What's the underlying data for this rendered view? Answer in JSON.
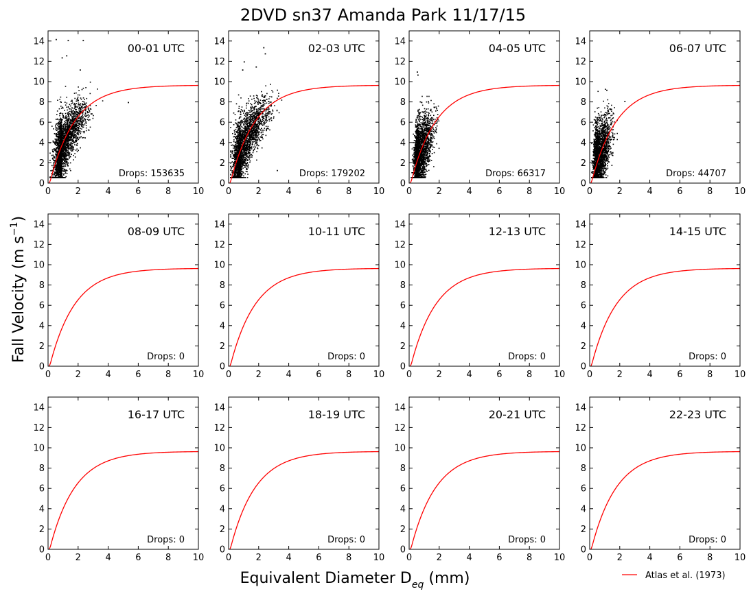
{
  "figure": {
    "title": "2DVD sn37 Amanda Park 11/17/15",
    "ylabel_main": "Fall Velocity (m s",
    "ylabel_sup": "−1",
    "ylabel_tail": ")",
    "xlabel_main": "Equivalent Diameter D",
    "xlabel_sub": "eq",
    "xlabel_tail": " (mm)",
    "legend_label": "Atlas et al. (1973)",
    "legend_position": "below-right",
    "fit_color": "#ff0000",
    "drop_color": "#000000"
  },
  "chart_data": [
    {
      "type": "scatter",
      "label": "00-01 UTC",
      "drops_text": "Drops: 153635",
      "xlim": [
        0,
        10
      ],
      "ylim": [
        0,
        15
      ],
      "x_ticks": [
        "0",
        "2",
        "4",
        "6",
        "8",
        "10"
      ],
      "y_ticks": [
        "0",
        "2",
        "4",
        "6",
        "8",
        "10",
        "12",
        "14"
      ],
      "has_scatter": true,
      "d_peak": 0.9,
      "d_spread": 0.75,
      "d_max": 3.6,
      "v_lo": 0.6,
      "v_hi": 10.0,
      "outliers": [
        [
          0.5,
          14.2
        ],
        [
          1.3,
          14.1
        ],
        [
          2.3,
          14.1
        ],
        [
          0.9,
          12.4
        ],
        [
          1.2,
          12.6
        ],
        [
          2.1,
          11.2
        ],
        [
          5.3,
          8.0
        ]
      ]
    },
    {
      "type": "scatter",
      "label": "02-03 UTC",
      "drops_text": "Drops: 179202",
      "xlim": [
        0,
        10
      ],
      "ylim": [
        0,
        15
      ],
      "x_ticks": [
        "0",
        "2",
        "4",
        "6",
        "8",
        "10"
      ],
      "y_ticks": [
        "0",
        "2",
        "4",
        "6",
        "8",
        "10",
        "12",
        "14"
      ],
      "has_scatter": true,
      "d_peak": 0.8,
      "d_spread": 0.85,
      "d_max": 3.5,
      "v_lo": 0.6,
      "v_hi": 10.2,
      "outliers": [
        [
          2.3,
          13.4
        ],
        [
          1.0,
          12.0
        ],
        [
          1.8,
          11.5
        ],
        [
          0.9,
          11.2
        ],
        [
          3.2,
          1.3
        ],
        [
          2.4,
          12.8
        ]
      ]
    },
    {
      "type": "scatter",
      "label": "04-05 UTC",
      "drops_text": "Drops: 66317",
      "xlim": [
        0,
        10
      ],
      "ylim": [
        0,
        15
      ],
      "x_ticks": [
        "0",
        "2",
        "4",
        "6",
        "8",
        "10"
      ],
      "y_ticks": [
        "0",
        "2",
        "4",
        "6",
        "8",
        "10",
        "12",
        "14"
      ],
      "has_scatter": true,
      "d_peak": 0.6,
      "d_spread": 0.45,
      "d_max": 2.1,
      "v_lo": 0.6,
      "v_hi": 8.6,
      "outliers": [
        [
          0.5,
          11.0
        ],
        [
          0.55,
          10.7
        ],
        [
          0.8,
          8.0
        ]
      ]
    },
    {
      "type": "scatter",
      "label": "06-07 UTC",
      "drops_text": "Drops: 44707",
      "xlim": [
        0,
        10
      ],
      "ylim": [
        0,
        15
      ],
      "x_ticks": [
        "0",
        "2",
        "4",
        "6",
        "8",
        "10"
      ],
      "y_ticks": [
        "0",
        "2",
        "4",
        "6",
        "8",
        "10",
        "12",
        "14"
      ],
      "has_scatter": true,
      "d_peak": 0.5,
      "d_spread": 0.4,
      "d_max": 1.8,
      "v_lo": 0.6,
      "v_hi": 9.3,
      "outliers": [
        [
          2.3,
          8.1
        ],
        [
          1.1,
          9.2
        ]
      ]
    },
    {
      "type": "scatter",
      "label": "08-09 UTC",
      "drops_text": "Drops: 0",
      "xlim": [
        0,
        10
      ],
      "ylim": [
        0,
        15
      ],
      "x_ticks": [
        "0",
        "2",
        "4",
        "6",
        "8",
        "10"
      ],
      "y_ticks": [
        "0",
        "2",
        "4",
        "6",
        "8",
        "10",
        "12",
        "14"
      ],
      "has_scatter": false
    },
    {
      "type": "scatter",
      "label": "10-11 UTC",
      "drops_text": "Drops: 0",
      "xlim": [
        0,
        10
      ],
      "ylim": [
        0,
        15
      ],
      "x_ticks": [
        "0",
        "2",
        "4",
        "6",
        "8",
        "10"
      ],
      "y_ticks": [
        "0",
        "2",
        "4",
        "6",
        "8",
        "10",
        "12",
        "14"
      ],
      "has_scatter": false
    },
    {
      "type": "scatter",
      "label": "12-13 UTC",
      "drops_text": "Drops: 0",
      "xlim": [
        0,
        10
      ],
      "ylim": [
        0,
        15
      ],
      "x_ticks": [
        "0",
        "2",
        "4",
        "6",
        "8",
        "10"
      ],
      "y_ticks": [
        "0",
        "2",
        "4",
        "6",
        "8",
        "10",
        "12",
        "14"
      ],
      "has_scatter": false
    },
    {
      "type": "scatter",
      "label": "14-15 UTC",
      "drops_text": "Drops: 0",
      "xlim": [
        0,
        10
      ],
      "ylim": [
        0,
        15
      ],
      "x_ticks": [
        "0",
        "2",
        "4",
        "6",
        "8",
        "10"
      ],
      "y_ticks": [
        "0",
        "2",
        "4",
        "6",
        "8",
        "10",
        "12",
        "14"
      ],
      "has_scatter": false
    },
    {
      "type": "scatter",
      "label": "16-17 UTC",
      "drops_text": "Drops: 0",
      "xlim": [
        0,
        10
      ],
      "ylim": [
        0,
        15
      ],
      "x_ticks": [
        "0",
        "2",
        "4",
        "6",
        "8",
        "10"
      ],
      "y_ticks": [
        "0",
        "2",
        "4",
        "6",
        "8",
        "10",
        "12",
        "14"
      ],
      "has_scatter": false
    },
    {
      "type": "scatter",
      "label": "18-19 UTC",
      "drops_text": "Drops: 0",
      "xlim": [
        0,
        10
      ],
      "ylim": [
        0,
        15
      ],
      "x_ticks": [
        "0",
        "2",
        "4",
        "6",
        "8",
        "10"
      ],
      "y_ticks": [
        "0",
        "2",
        "4",
        "6",
        "8",
        "10",
        "12",
        "14"
      ],
      "has_scatter": false
    },
    {
      "type": "scatter",
      "label": "20-21 UTC",
      "drops_text": "Drops: 0",
      "xlim": [
        0,
        10
      ],
      "ylim": [
        0,
        15
      ],
      "x_ticks": [
        "0",
        "2",
        "4",
        "6",
        "8",
        "10"
      ],
      "y_ticks": [
        "0",
        "2",
        "4",
        "6",
        "8",
        "10",
        "12",
        "14"
      ],
      "has_scatter": false
    },
    {
      "type": "scatter",
      "label": "22-23 UTC",
      "drops_text": "Drops: 0",
      "xlim": [
        0,
        10
      ],
      "ylim": [
        0,
        15
      ],
      "x_ticks": [
        "0",
        "2",
        "4",
        "6",
        "8",
        "10"
      ],
      "y_ticks": [
        "0",
        "2",
        "4",
        "6",
        "8",
        "10",
        "12",
        "14"
      ],
      "has_scatter": false
    }
  ]
}
